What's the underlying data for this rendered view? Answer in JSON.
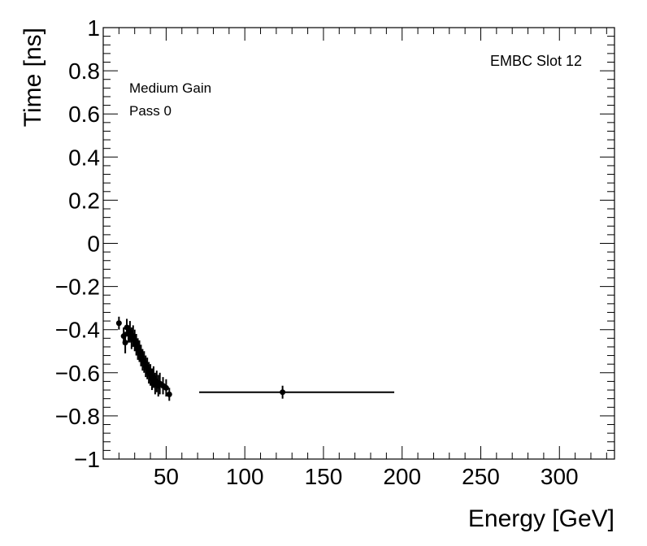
{
  "chart_data": {
    "type": "scatter",
    "xlabel": "Energy [GeV]",
    "ylabel": "Time [ns]",
    "xlim": [
      10,
      335
    ],
    "ylim": [
      -1,
      1
    ],
    "x_ticks": [
      50,
      100,
      150,
      200,
      250,
      300
    ],
    "y_ticks": [
      -1,
      -0.8,
      -0.6,
      -0.4,
      -0.2,
      0,
      0.2,
      0.4,
      0.6,
      0.8,
      1
    ],
    "x_tick_labels": [
      "50",
      "100",
      "150",
      "200",
      "250",
      "300"
    ],
    "y_tick_labels": [
      "−1",
      "−0.8",
      "−0.6",
      "−0.4",
      "−0.2",
      "0",
      "0.2",
      "0.4",
      "0.6",
      "0.8",
      "1"
    ],
    "grid": false,
    "annotations": {
      "top_right": "EMBC Slot 12",
      "line1": "Medium Gain",
      "line2": "Pass 0"
    },
    "series": [
      {
        "points": [
          {
            "x": 20.0,
            "y": -0.37,
            "err": 0.03
          },
          {
            "x": 23.0,
            "y": -0.43,
            "err": 0.04
          },
          {
            "x": 24.0,
            "y": -0.46,
            "err": 0.05
          },
          {
            "x": 25.0,
            "y": -0.39,
            "err": 0.04
          },
          {
            "x": 26.0,
            "y": -0.42,
            "err": 0.04
          },
          {
            "x": 27.0,
            "y": -0.41,
            "err": 0.05
          },
          {
            "x": 28.0,
            "y": -0.44,
            "err": 0.05
          },
          {
            "x": 29.0,
            "y": -0.43,
            "err": 0.05
          },
          {
            "x": 30.0,
            "y": -0.45,
            "err": 0.05
          },
          {
            "x": 31.0,
            "y": -0.47,
            "err": 0.05
          },
          {
            "x": 32.0,
            "y": -0.49,
            "err": 0.05
          },
          {
            "x": 33.0,
            "y": -0.5,
            "err": 0.05
          },
          {
            "x": 34.0,
            "y": -0.52,
            "err": 0.05
          },
          {
            "x": 35.0,
            "y": -0.54,
            "err": 0.05
          },
          {
            "x": 36.0,
            "y": -0.55,
            "err": 0.05
          },
          {
            "x": 37.0,
            "y": -0.57,
            "err": 0.05
          },
          {
            "x": 38.0,
            "y": -0.58,
            "err": 0.05
          },
          {
            "x": 39.0,
            "y": -0.6,
            "err": 0.05
          },
          {
            "x": 40.0,
            "y": -0.61,
            "err": 0.05
          },
          {
            "x": 41.0,
            "y": -0.63,
            "err": 0.05
          },
          {
            "x": 42.0,
            "y": -0.62,
            "err": 0.05
          },
          {
            "x": 43.0,
            "y": -0.65,
            "err": 0.05
          },
          {
            "x": 44.0,
            "y": -0.64,
            "err": 0.05
          },
          {
            "x": 45.0,
            "y": -0.66,
            "err": 0.05
          },
          {
            "x": 46.0,
            "y": -0.65,
            "err": 0.05
          },
          {
            "x": 48.0,
            "y": -0.66,
            "err": 0.04
          },
          {
            "x": 50.0,
            "y": -0.67,
            "err": 0.04
          },
          {
            "x": 52.0,
            "y": -0.7,
            "err": 0.03
          },
          {
            "x": 124.0,
            "y": -0.69,
            "err": 0.03,
            "xerr": [
              71,
              195
            ]
          }
        ]
      }
    ]
  }
}
